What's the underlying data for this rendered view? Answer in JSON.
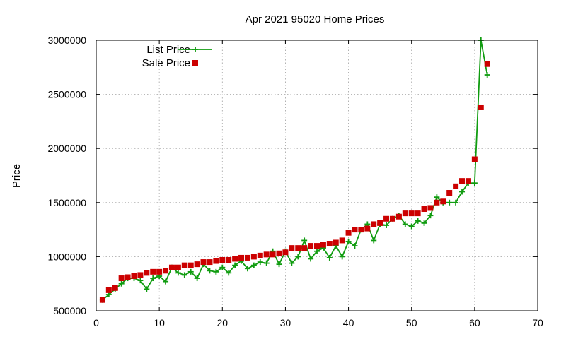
{
  "chart_data": {
    "type": "scatter",
    "title": "Apr 2021 95020 Home Prices",
    "xlabel": "",
    "ylabel": "Price",
    "xlim": [
      0,
      70
    ],
    "ylim": [
      500000,
      3000000
    ],
    "xticks": [
      0,
      10,
      20,
      30,
      40,
      50,
      60,
      70
    ],
    "yticks": [
      500000,
      1000000,
      1500000,
      2000000,
      2500000,
      3000000
    ],
    "xtick_labels": [
      "0",
      "10",
      "20",
      "30",
      "40",
      "50",
      "60",
      "70"
    ],
    "ytick_labels": [
      "500000",
      "1000000",
      "1500000",
      "2000000",
      "2500000",
      "3000000"
    ],
    "grid": true,
    "legend_position": "top-left",
    "series": [
      {
        "name": "List Price",
        "style": "linespoints",
        "marker": "plus",
        "color": "#109c10",
        "x": [
          1,
          2,
          3,
          4,
          5,
          6,
          7,
          8,
          9,
          10,
          11,
          12,
          13,
          14,
          15,
          16,
          17,
          18,
          19,
          20,
          21,
          22,
          23,
          24,
          25,
          26,
          27,
          28,
          29,
          30,
          31,
          32,
          33,
          34,
          35,
          36,
          37,
          38,
          39,
          40,
          41,
          42,
          43,
          44,
          45,
          46,
          47,
          48,
          49,
          50,
          51,
          52,
          53,
          54,
          55,
          56,
          57,
          58,
          59,
          60,
          61,
          62
        ],
        "y": [
          600000,
          650000,
          700000,
          750000,
          800000,
          800000,
          780000,
          700000,
          800000,
          820000,
          770000,
          900000,
          850000,
          830000,
          860000,
          800000,
          930000,
          870000,
          860000,
          900000,
          850000,
          920000,
          960000,
          890000,
          920000,
          950000,
          940000,
          1050000,
          930000,
          1050000,
          940000,
          1000000,
          1150000,
          980000,
          1050000,
          1080000,
          990000,
          1100000,
          1000000,
          1140000,
          1100000,
          1250000,
          1300000,
          1150000,
          1300000,
          1290000,
          1350000,
          1380000,
          1300000,
          1280000,
          1330000,
          1310000,
          1380000,
          1550000,
          1500000,
          1500000,
          1500000,
          1600000,
          1680000,
          1680000,
          3000000,
          2680000
        ]
      },
      {
        "name": "Sale Price",
        "style": "points",
        "marker": "square",
        "color": "#cc0000",
        "x": [
          1,
          2,
          3,
          4,
          5,
          6,
          7,
          8,
          9,
          10,
          11,
          12,
          13,
          14,
          15,
          16,
          17,
          18,
          19,
          20,
          21,
          22,
          23,
          24,
          25,
          26,
          27,
          28,
          29,
          30,
          31,
          32,
          33,
          34,
          35,
          36,
          37,
          38,
          39,
          40,
          41,
          42,
          43,
          44,
          45,
          46,
          47,
          48,
          49,
          50,
          51,
          52,
          53,
          54,
          55,
          56,
          57,
          58,
          59,
          60,
          61,
          62
        ],
        "y": [
          600000,
          690000,
          710000,
          800000,
          810000,
          820000,
          830000,
          850000,
          860000,
          860000,
          870000,
          900000,
          900000,
          920000,
          920000,
          930000,
          950000,
          950000,
          960000,
          970000,
          970000,
          980000,
          990000,
          990000,
          1000000,
          1010000,
          1020000,
          1020000,
          1030000,
          1040000,
          1080000,
          1080000,
          1080000,
          1100000,
          1100000,
          1110000,
          1120000,
          1130000,
          1150000,
          1220000,
          1250000,
          1250000,
          1260000,
          1300000,
          1310000,
          1350000,
          1350000,
          1370000,
          1400000,
          1400000,
          1400000,
          1440000,
          1450000,
          1500000,
          1510000,
          1590000,
          1650000,
          1700000,
          1700000,
          1900000,
          2380000,
          2780000
        ]
      }
    ]
  }
}
